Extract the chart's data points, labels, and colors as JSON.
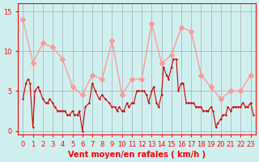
{
  "bg_color": "#d0f0f0",
  "grid_color": "#aaaaaa",
  "title": "Vent moyen/en rafales ( km/h )",
  "ylabel_ticks": [
    0,
    5,
    10,
    15
  ],
  "xlim": [
    -0.5,
    23.5
  ],
  "ylim": [
    -0.5,
    16
  ],
  "line1_color": "#ff9999",
  "line2_color": "#cc0000",
  "line1_x": [
    0,
    1,
    2,
    3,
    4,
    5,
    6,
    7,
    8,
    9,
    10,
    11,
    12,
    13,
    14,
    15,
    16,
    17,
    18,
    19,
    20,
    21,
    22,
    23
  ],
  "line1_y": [
    14,
    8.5,
    11,
    10.5,
    9,
    5.5,
    4.5,
    7,
    6.5,
    11.3,
    4.5,
    6.5,
    6.5,
    13.5,
    8.5,
    9.5,
    13,
    12.5,
    7,
    5.5,
    4,
    5,
    5,
    7
  ],
  "line2_x": [
    0,
    0.3,
    0.5,
    0.7,
    1.0,
    1.2,
    1.5,
    1.7,
    2.0,
    2.3,
    2.5,
    2.7,
    3.0,
    3.2,
    3.5,
    3.7,
    4.0,
    4.2,
    4.5,
    4.7,
    5.0,
    5.2,
    5.5,
    5.7,
    6.0,
    6.3,
    6.7,
    7.0,
    7.3,
    7.7,
    8.0,
    8.3,
    8.7,
    9.0,
    9.3,
    9.5,
    9.7,
    10.0,
    10.2,
    10.5,
    10.7,
    11.0,
    11.2,
    11.5,
    11.7,
    12.0,
    12.2,
    12.5,
    12.7,
    13.0,
    13.2,
    13.5,
    13.7,
    14.0,
    14.2,
    14.5,
    14.7,
    15.0,
    15.2,
    15.5,
    15.7,
    16.0,
    16.2,
    16.5,
    16.7,
    17.0,
    17.2,
    17.5,
    17.7,
    18.0,
    18.2,
    18.5,
    18.7,
    19.0,
    19.2,
    19.5,
    19.7,
    20.0,
    20.2,
    20.5,
    20.7,
    21.0,
    21.2,
    21.5,
    21.7,
    22.0,
    22.2,
    22.5,
    22.7,
    23.0,
    23.3
  ],
  "line2_y": [
    4,
    6,
    6.5,
    6,
    0.5,
    5,
    5.5,
    5,
    4,
    3.5,
    3.5,
    4,
    3.5,
    3,
    2.5,
    2.5,
    2.5,
    2.5,
    2,
    2,
    2.5,
    2,
    2,
    2.5,
    0,
    3,
    3.5,
    6,
    5,
    4,
    4.5,
    4,
    3.5,
    3,
    3,
    2.5,
    3,
    2.5,
    2.5,
    3.5,
    3,
    3.5,
    3.5,
    5,
    5,
    5,
    5,
    4.5,
    3.5,
    5,
    5.5,
    3.5,
    3,
    4.5,
    8,
    7,
    6.5,
    8,
    9,
    9,
    5,
    6,
    6,
    3.5,
    3.5,
    3.5,
    3.5,
    3,
    3,
    3,
    2.5,
    2.5,
    2.5,
    3,
    2.5,
    0.5,
    1,
    1.5,
    2,
    2,
    3,
    2.5,
    3,
    3,
    3,
    3,
    3.5,
    3,
    3,
    3.5,
    2
  ]
}
